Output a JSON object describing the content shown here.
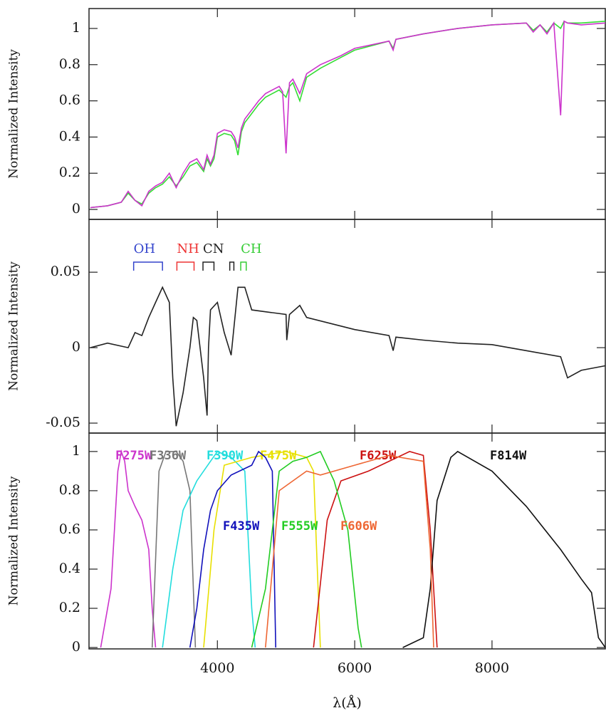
{
  "chart_data": [
    {
      "type": "line",
      "ylabel": "Normalized Intensity",
      "xlim": [
        2130,
        9650
      ],
      "xticks": [
        4000,
        6000,
        8000
      ],
      "ylim": [
        -0.055,
        1.11
      ],
      "yticks": [
        0,
        0.2,
        0.4,
        0.6,
        0.8,
        1
      ],
      "x": [
        2150,
        2400,
        2600,
        2700,
        2800,
        2900,
        3000,
        3100,
        3200,
        3300,
        3400,
        3500,
        3600,
        3700,
        3800,
        3850,
        3900,
        3950,
        4000,
        4100,
        4200,
        4250,
        4300,
        4350,
        4400,
        4500,
        4600,
        4700,
        4800,
        4900,
        4950,
        5000,
        5050,
        5100,
        5200,
        5300,
        5500,
        5800,
        6000,
        6500,
        6560,
        6600,
        7000,
        7500,
        8000,
        8500,
        8600,
        8700,
        8800,
        8900,
        9000,
        9050,
        9100,
        9300,
        9650
      ],
      "series": [
        {
          "color": "#33dd33",
          "values": [
            0.01,
            0.02,
            0.04,
            0.09,
            0.05,
            0.03,
            0.09,
            0.12,
            0.14,
            0.18,
            0.13,
            0.18,
            0.24,
            0.26,
            0.21,
            0.28,
            0.24,
            0.28,
            0.4,
            0.42,
            0.41,
            0.38,
            0.3,
            0.43,
            0.48,
            0.53,
            0.58,
            0.62,
            0.64,
            0.66,
            0.64,
            0.62,
            0.68,
            0.7,
            0.6,
            0.73,
            0.78,
            0.84,
            0.88,
            0.93,
            0.89,
            0.94,
            0.97,
            1.0,
            1.02,
            1.03,
            0.99,
            1.02,
            0.98,
            1.03,
            1.0,
            1.04,
            1.03,
            1.03,
            1.04
          ]
        },
        {
          "color": "#cc33cc",
          "values": [
            0.01,
            0.02,
            0.04,
            0.1,
            0.05,
            0.02,
            0.1,
            0.13,
            0.15,
            0.2,
            0.12,
            0.2,
            0.26,
            0.28,
            0.22,
            0.3,
            0.25,
            0.3,
            0.42,
            0.44,
            0.43,
            0.4,
            0.34,
            0.45,
            0.5,
            0.55,
            0.6,
            0.64,
            0.66,
            0.68,
            0.65,
            0.31,
            0.7,
            0.72,
            0.64,
            0.75,
            0.8,
            0.85,
            0.89,
            0.93,
            0.88,
            0.94,
            0.97,
            1.0,
            1.02,
            1.03,
            0.98,
            1.02,
            0.97,
            1.03,
            0.52,
            1.04,
            1.03,
            1.02,
            1.03
          ]
        }
      ]
    },
    {
      "type": "line",
      "ylabel": "Normalized Intensity",
      "xlim": [
        2130,
        9650
      ],
      "xticks": [
        4000,
        6000,
        8000
      ],
      "ylim": [
        -0.0566,
        0.085
      ],
      "yticks": [
        -0.05,
        0,
        0.05
      ],
      "x": [
        2150,
        2400,
        2700,
        2800,
        2900,
        3000,
        3100,
        3200,
        3300,
        3350,
        3400,
        3500,
        3600,
        3650,
        3700,
        3800,
        3850,
        3870,
        3900,
        4000,
        4100,
        4200,
        4300,
        4400,
        4500,
        5000,
        5010,
        5050,
        5200,
        5300,
        6000,
        6500,
        6560,
        6600,
        7000,
        7500,
        8000,
        8500,
        9000,
        9100,
        9300,
        9650
      ],
      "series": [
        {
          "color": "#222222",
          "values": [
            0.0,
            0.003,
            0.0,
            0.01,
            0.008,
            0.02,
            0.03,
            0.04,
            0.03,
            -0.02,
            -0.052,
            -0.03,
            0.0,
            0.02,
            0.018,
            -0.02,
            -0.045,
            0.0,
            0.025,
            0.03,
            0.01,
            -0.005,
            0.04,
            0.04,
            0.025,
            0.022,
            0.005,
            0.022,
            0.028,
            0.02,
            0.012,
            0.008,
            -0.002,
            0.007,
            0.005,
            0.003,
            0.002,
            -0.002,
            -0.006,
            -0.02,
            -0.015,
            -0.012
          ]
        }
      ],
      "annotations": [
        {
          "text": "OH",
          "color": "#3344cc",
          "ranges": [
            [
              2780,
              3200
            ]
          ]
        },
        {
          "text": "NH",
          "color": "#ee3333",
          "ranges": [
            [
              3410,
              3660
            ]
          ]
        },
        {
          "text": "CN",
          "color": "#222222",
          "ranges": [
            [
              3790,
              3950
            ],
            [
              4180,
              4240
            ]
          ]
        },
        {
          "text": "CH",
          "color": "#33cc33",
          "ranges": [
            [
              4340,
              4420
            ]
          ]
        }
      ]
    },
    {
      "type": "line",
      "ylabel": "Normalized Intensity",
      "xlabel": "λ(Å)",
      "xlim": [
        2130,
        9650
      ],
      "xticks": [
        4000,
        6000,
        8000
      ],
      "ylim": [
        -0.007,
        1.094
      ],
      "yticks": [
        0,
        0.2,
        0.4,
        0.6,
        0.8,
        1
      ],
      "series": [
        {
          "name": "F275W",
          "color": "#cc33cc",
          "x": [
            2300,
            2450,
            2550,
            2600,
            2650,
            2700,
            2800,
            2900,
            3000,
            3050,
            3100
          ],
          "values": [
            0,
            0.3,
            0.9,
            1.0,
            0.95,
            0.8,
            0.72,
            0.65,
            0.5,
            0.2,
            0
          ]
        },
        {
          "name": "F336W",
          "color": "#777777",
          "x": [
            3050,
            3150,
            3250,
            3400,
            3500,
            3600,
            3680
          ],
          "values": [
            0,
            0.9,
            1.0,
            1.0,
            0.95,
            0.8,
            0
          ]
        },
        {
          "name": "F390W",
          "color": "#22dddd",
          "x": [
            3200,
            3350,
            3500,
            3700,
            3900,
            4000,
            4200,
            4400,
            4500,
            4550
          ],
          "values": [
            0,
            0.4,
            0.7,
            0.85,
            0.95,
            1.0,
            0.97,
            0.9,
            0.2,
            0
          ]
        },
        {
          "name": "F475W",
          "color": "#e8e000",
          "x": [
            3800,
            3950,
            4100,
            4500,
            5000,
            5300,
            5400,
            5500
          ],
          "values": [
            0,
            0.6,
            0.93,
            0.97,
            1.0,
            0.97,
            0.9,
            0
          ]
        },
        {
          "name": "F625W",
          "color": "#cc1111",
          "x": [
            5400,
            5600,
            5800,
            6200,
            6500,
            6800,
            7000,
            7100,
            7200
          ],
          "values": [
            0,
            0.65,
            0.85,
            0.9,
            0.95,
            1.0,
            0.98,
            0.6,
            0
          ]
        },
        {
          "name": "F814W",
          "color": "#111111",
          "x": [
            6700,
            7000,
            7100,
            7200,
            7400,
            7500,
            8000,
            8500,
            9000,
            9300,
            9450,
            9550,
            9650
          ],
          "values": [
            0,
            0.05,
            0.3,
            0.75,
            0.97,
            1.0,
            0.9,
            0.72,
            0.5,
            0.35,
            0.28,
            0.05,
            0
          ]
        },
        {
          "name": "F435W",
          "color": "#1111bb",
          "x": [
            3600,
            3700,
            3800,
            3900,
            4000,
            4200,
            4500,
            4600,
            4700,
            4800,
            4850
          ],
          "values": [
            0,
            0.2,
            0.5,
            0.7,
            0.8,
            0.88,
            0.93,
            1.0,
            0.97,
            0.9,
            0
          ]
        },
        {
          "name": "F555W",
          "color": "#22cc22",
          "x": [
            4500,
            4700,
            4900,
            5100,
            5300,
            5500,
            5700,
            5900,
            6050,
            6100
          ],
          "values": [
            0,
            0.3,
            0.9,
            0.95,
            0.97,
            1.0,
            0.85,
            0.6,
            0.1,
            0
          ]
        },
        {
          "name": "F606W",
          "color": "#ee6633",
          "x": [
            4700,
            4900,
            5100,
            5300,
            5500,
            6000,
            6500,
            7000,
            7100,
            7150
          ],
          "values": [
            0,
            0.8,
            0.85,
            0.9,
            0.88,
            0.93,
            0.98,
            0.95,
            0.5,
            0
          ]
        }
      ]
    }
  ]
}
